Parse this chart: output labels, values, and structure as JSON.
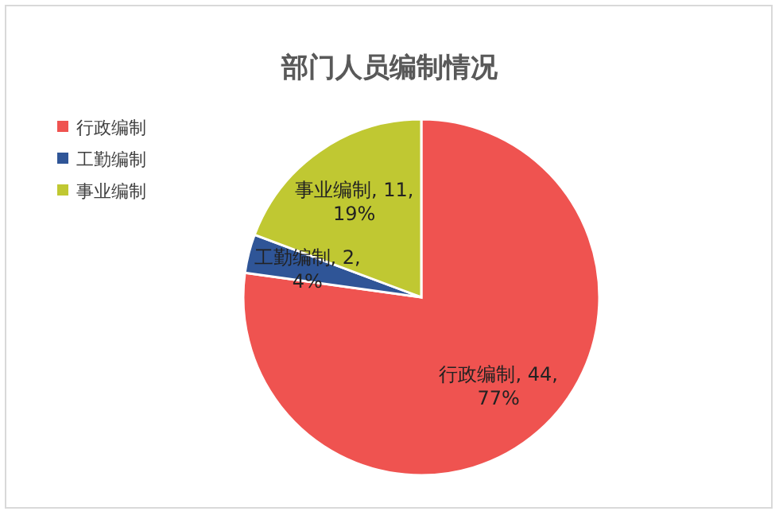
{
  "chart_data": {
    "type": "pie",
    "title": "部门人员编制情况",
    "categories": [
      "行政编制",
      "工勤编制",
      "事业编制"
    ],
    "values": [
      44,
      2,
      11
    ],
    "colors": [
      "#ef5350",
      "#2f5597",
      "#c0c832"
    ],
    "value_labels": [
      "行政编制, 44,\n77%",
      "工勤编制, 2,\n4%",
      "事业编制, 11,\n19%"
    ],
    "legend": "top left"
  }
}
